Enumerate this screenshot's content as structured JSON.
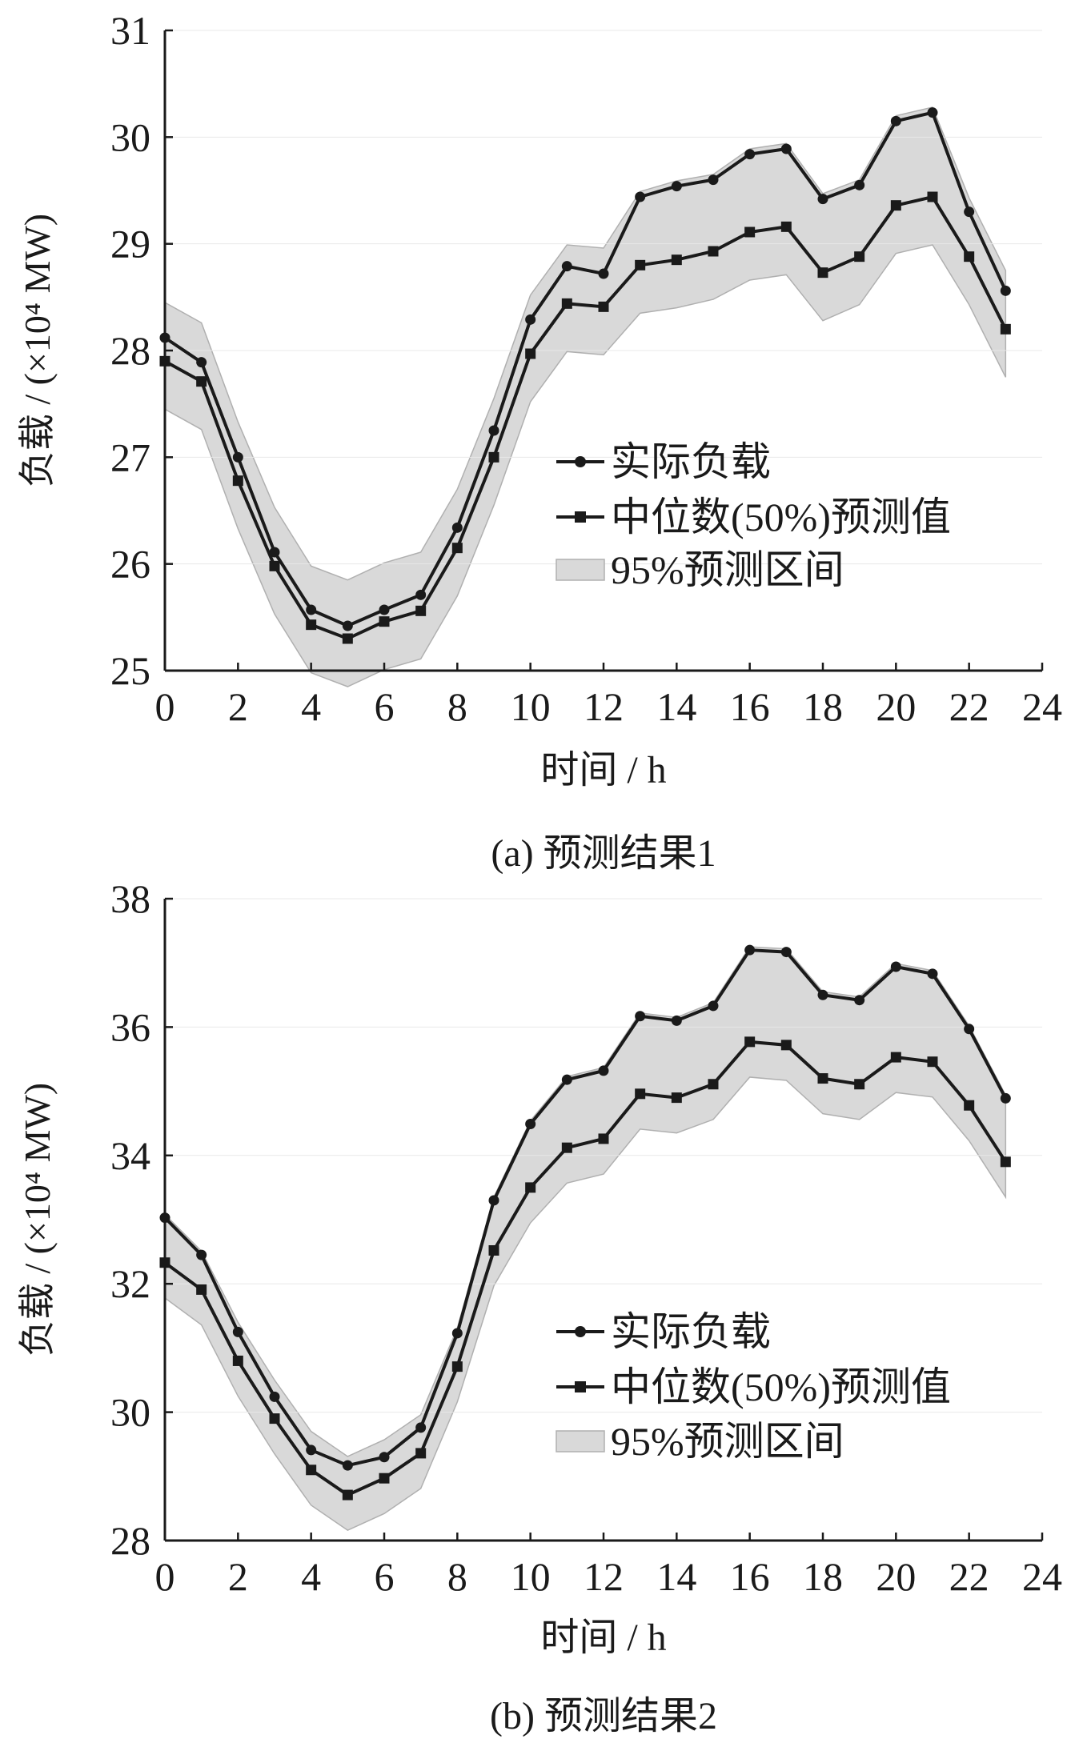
{
  "chart_data": [
    {
      "type": "line",
      "caption": "(a)  预测结果1",
      "xlabel": "时间 / h",
      "ylabel": "负载 / (×10⁴ MW)",
      "xlim": [
        0,
        24
      ],
      "ylim": [
        25,
        31
      ],
      "xticks": [
        0,
        2,
        4,
        6,
        8,
        10,
        12,
        14,
        16,
        18,
        20,
        22,
        24
      ],
      "yticks": [
        25,
        26,
        27,
        28,
        29,
        30,
        31
      ],
      "legend_position": "center-right",
      "x": [
        0,
        1,
        2,
        3,
        4,
        5,
        6,
        7,
        8,
        9,
        10,
        11,
        12,
        13,
        14,
        15,
        16,
        17,
        18,
        19,
        20,
        21,
        22,
        23
      ],
      "series": [
        {
          "name": "实际负载",
          "marker": "circle",
          "values": [
            28.12,
            27.89,
            27.0,
            26.11,
            25.57,
            25.42,
            25.57,
            25.71,
            26.34,
            27.25,
            28.29,
            28.79,
            28.72,
            29.44,
            29.54,
            29.6,
            29.84,
            29.89,
            29.42,
            29.55,
            30.15,
            30.23,
            29.3,
            28.56
          ]
        },
        {
          "name": "中位数(50%)预测值",
          "marker": "square",
          "values": [
            27.9,
            27.71,
            26.78,
            25.98,
            25.43,
            25.3,
            25.46,
            25.56,
            26.15,
            27.0,
            27.97,
            28.44,
            28.41,
            28.8,
            28.85,
            28.93,
            29.11,
            29.16,
            28.73,
            28.88,
            29.36,
            29.44,
            28.88,
            28.2
          ]
        }
      ],
      "band": {
        "name": "95%预测区间",
        "lower": [
          27.45,
          27.26,
          26.33,
          25.53,
          24.98,
          24.85,
          25.01,
          25.11,
          25.7,
          26.55,
          27.52,
          27.99,
          27.96,
          28.35,
          28.4,
          28.48,
          28.66,
          28.71,
          28.28,
          28.43,
          28.91,
          28.99,
          28.43,
          27.75
        ],
        "upper": [
          28.45,
          28.26,
          27.33,
          26.53,
          25.98,
          25.85,
          26.01,
          26.11,
          26.7,
          27.55,
          28.52,
          28.99,
          28.96,
          29.49,
          29.59,
          29.65,
          29.89,
          29.94,
          29.47,
          29.6,
          30.2,
          30.28,
          29.43,
          28.75
        ]
      }
    },
    {
      "type": "line",
      "caption": "(b)  预测结果2",
      "xlabel": "时间 / h",
      "ylabel": "负载 / (×10⁴ MW)",
      "xlim": [
        0,
        24
      ],
      "ylim": [
        28,
        38
      ],
      "xticks": [
        0,
        2,
        4,
        6,
        8,
        10,
        12,
        14,
        16,
        18,
        20,
        22,
        24
      ],
      "yticks": [
        28,
        30,
        32,
        34,
        36,
        38
      ],
      "legend_position": "center-right",
      "x": [
        0,
        1,
        2,
        3,
        4,
        5,
        6,
        7,
        8,
        9,
        10,
        11,
        12,
        13,
        14,
        15,
        16,
        17,
        18,
        19,
        20,
        21,
        22,
        23
      ],
      "series": [
        {
          "name": "实际负载",
          "marker": "circle",
          "values": [
            33.03,
            32.45,
            31.25,
            30.24,
            29.41,
            29.17,
            29.3,
            29.76,
            31.23,
            33.3,
            34.49,
            35.18,
            35.32,
            36.17,
            36.1,
            36.33,
            37.2,
            37.17,
            36.5,
            36.42,
            36.94,
            36.83,
            35.97,
            34.89
          ]
        },
        {
          "name": "中位数(50%)预测值",
          "marker": "square",
          "values": [
            32.33,
            31.91,
            30.8,
            29.9,
            29.1,
            28.71,
            28.97,
            29.36,
            30.71,
            32.52,
            33.5,
            34.12,
            34.26,
            34.96,
            34.9,
            35.11,
            35.77,
            35.72,
            35.2,
            35.11,
            35.53,
            35.46,
            34.78,
            33.9
          ]
        }
      ],
      "band": {
        "name": "95%预测区间",
        "lower": [
          31.78,
          31.36,
          30.25,
          29.35,
          28.55,
          28.16,
          28.42,
          28.81,
          30.16,
          31.97,
          32.95,
          33.57,
          33.71,
          34.41,
          34.35,
          34.56,
          35.22,
          35.17,
          34.65,
          34.56,
          34.98,
          34.91,
          34.23,
          33.35
        ],
        "upper": [
          33.08,
          32.51,
          31.4,
          30.5,
          29.7,
          29.31,
          29.57,
          29.96,
          31.31,
          33.35,
          34.54,
          35.23,
          35.37,
          36.22,
          36.15,
          36.38,
          37.25,
          37.22,
          36.55,
          36.47,
          36.99,
          36.88,
          36.02,
          34.94
        ]
      }
    }
  ],
  "colors": {
    "line": "#1a1a1a",
    "band_fill": "#d9d9d9",
    "band_edge": "#b0b0b0"
  }
}
